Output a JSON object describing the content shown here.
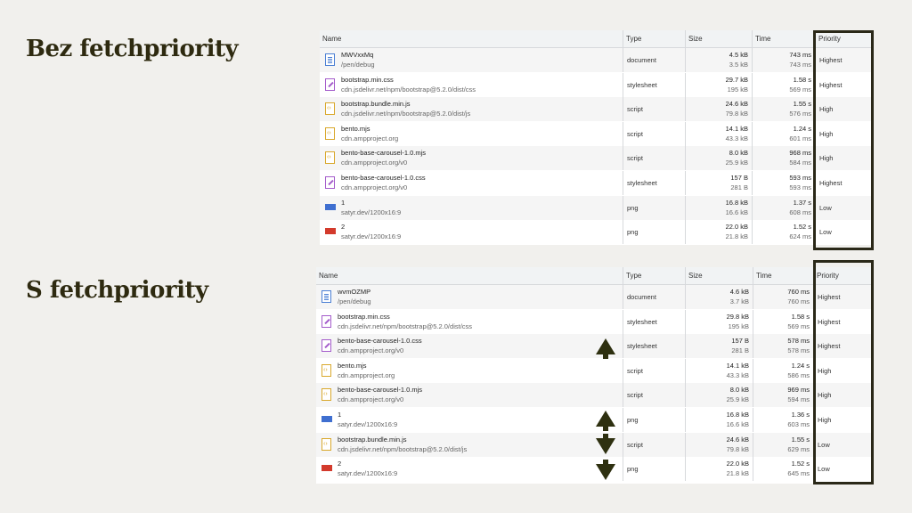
{
  "headings": {
    "without": "Bez fetchpriority",
    "with": "S fetchpriority"
  },
  "columns": [
    "Name",
    "Type",
    "Size",
    "Time",
    "Priority"
  ],
  "table_without": [
    {
      "icon": "document-icon",
      "name": "MWVxxMq",
      "path": "/pen/debug",
      "type": "document",
      "size": "4.5 kB",
      "resource": "3.5 kB",
      "time": "743 ms",
      "latency": "743 ms",
      "priority": "Highest"
    },
    {
      "icon": "stylesheet-icon",
      "name": "bootstrap.min.css",
      "path": "cdn.jsdelivr.net/npm/bootstrap@5.2.0/dist/css",
      "type": "stylesheet",
      "size": "29.7 kB",
      "resource": "195 kB",
      "time": "1.58 s",
      "latency": "569 ms",
      "priority": "Highest"
    },
    {
      "icon": "script-icon",
      "name": "bootstrap.bundle.min.js",
      "path": "cdn.jsdelivr.net/npm/bootstrap@5.2.0/dist/js",
      "type": "script",
      "size": "24.6 kB",
      "resource": "79.8 kB",
      "time": "1.55 s",
      "latency": "576 ms",
      "priority": "High"
    },
    {
      "icon": "script-icon",
      "name": "bento.mjs",
      "path": "cdn.ampproject.org",
      "type": "script",
      "size": "14.1 kB",
      "resource": "43.3 kB",
      "time": "1.24 s",
      "latency": "601 ms",
      "priority": "High"
    },
    {
      "icon": "script-icon",
      "name": "bento-base-carousel-1.0.mjs",
      "path": "cdn.ampproject.org/v0",
      "type": "script",
      "size": "8.0 kB",
      "resource": "25.9 kB",
      "time": "968 ms",
      "latency": "584 ms",
      "priority": "High"
    },
    {
      "icon": "stylesheet-icon",
      "name": "bento-base-carousel-1.0.css",
      "path": "cdn.ampproject.org/v0",
      "type": "stylesheet",
      "size": "157 B",
      "resource": "281 B",
      "time": "593 ms",
      "latency": "593 ms",
      "priority": "Highest"
    },
    {
      "icon": "image-blue-icon",
      "name": "1",
      "path": "satyr.dev/1200x16:9",
      "type": "png",
      "size": "16.8 kB",
      "resource": "16.6 kB",
      "time": "1.37 s",
      "latency": "608 ms",
      "priority": "Low"
    },
    {
      "icon": "image-red-icon",
      "name": "2",
      "path": "satyr.dev/1200x16:9",
      "type": "png",
      "size": "22.0 kB",
      "resource": "21.8 kB",
      "time": "1.52 s",
      "latency": "624 ms",
      "priority": "Low"
    }
  ],
  "table_with": [
    {
      "icon": "document-icon",
      "name": "wvmOZMP",
      "path": "/pen/debug",
      "type": "document",
      "size": "4.6 kB",
      "resource": "3.7 kB",
      "time": "760 ms",
      "latency": "760 ms",
      "priority": "Highest"
    },
    {
      "icon": "stylesheet-icon",
      "name": "bootstrap.min.css",
      "path": "cdn.jsdelivr.net/npm/bootstrap@5.2.0/dist/css",
      "type": "stylesheet",
      "size": "29.8 kB",
      "resource": "195 kB",
      "time": "1.58 s",
      "latency": "569 ms",
      "priority": "Highest"
    },
    {
      "icon": "stylesheet-icon",
      "name": "bento-base-carousel-1.0.css",
      "path": "cdn.ampproject.org/v0",
      "type": "stylesheet",
      "size": "157 B",
      "resource": "281 B",
      "time": "578 ms",
      "latency": "578 ms",
      "priority": "Highest"
    },
    {
      "icon": "script-icon",
      "name": "bento.mjs",
      "path": "cdn.ampproject.org",
      "type": "script",
      "size": "14.1 kB",
      "resource": "43.3 kB",
      "time": "1.24 s",
      "latency": "586 ms",
      "priority": "High"
    },
    {
      "icon": "script-icon",
      "name": "bento-base-carousel-1.0.mjs",
      "path": "cdn.ampproject.org/v0",
      "type": "script",
      "size": "8.0 kB",
      "resource": "25.9 kB",
      "time": "969 ms",
      "latency": "594 ms",
      "priority": "High"
    },
    {
      "icon": "image-blue-icon",
      "name": "1",
      "path": "satyr.dev/1200x16:9",
      "type": "png",
      "size": "16.8 kB",
      "resource": "16.6 kB",
      "time": "1.36 s",
      "latency": "603 ms",
      "priority": "High"
    },
    {
      "icon": "script-icon",
      "name": "bootstrap.bundle.min.js",
      "path": "cdn.jsdelivr.net/npm/bootstrap@5.2.0/dist/js",
      "type": "script",
      "size": "24.6 kB",
      "resource": "79.8 kB",
      "time": "1.55 s",
      "latency": "629 ms",
      "priority": "Low"
    },
    {
      "icon": "image-red-icon",
      "name": "2",
      "path": "satyr.dev/1200x16:9",
      "type": "png",
      "size": "22.0 kB",
      "resource": "21.8 kB",
      "time": "1.52 s",
      "latency": "645 ms",
      "priority": "Low"
    }
  ],
  "colors": {
    "title": "#2e2a10",
    "frame": "#2a2818",
    "arrow": "#2e3010"
  }
}
